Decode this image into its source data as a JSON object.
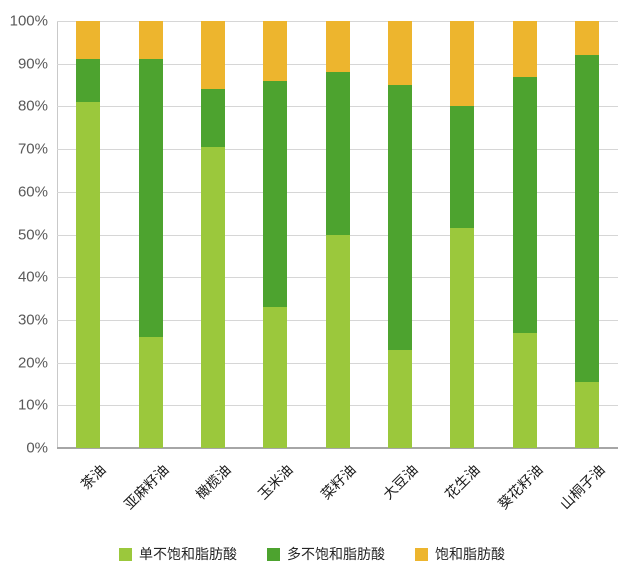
{
  "chart_data": {
    "type": "bar",
    "stacked": true,
    "percent": true,
    "title": "",
    "xlabel": "",
    "ylabel": "",
    "ylim": [
      0,
      100
    ],
    "ytick_step": 10,
    "yticks": [
      "0%",
      "10%",
      "20%",
      "30%",
      "40%",
      "50%",
      "60%",
      "70%",
      "80%",
      "90%",
      "100%"
    ],
    "grid": true,
    "legend_position": "bottom",
    "categories": [
      "茶油",
      "亚麻籽油",
      "橄榄油",
      "玉米油",
      "菜籽油",
      "大豆油",
      "花生油",
      "葵花籽油",
      "山桐子油"
    ],
    "series": [
      {
        "name": "单不饱和脂肪酸",
        "color": "#9BC83C",
        "values": [
          81,
          26,
          70.5,
          33,
          50,
          23,
          51.5,
          27,
          15.5
        ]
      },
      {
        "name": "多不饱和脂肪酸",
        "color": "#4DA32F",
        "values": [
          10,
          65,
          13.5,
          53,
          38,
          62,
          28.5,
          60,
          76.5
        ]
      },
      {
        "name": "饱和脂肪酸",
        "color": "#EDB52E",
        "values": [
          9,
          9,
          16,
          14,
          12,
          15,
          20,
          13,
          8
        ]
      }
    ]
  },
  "colors": {
    "background": "#ffffff",
    "gridline": "#d6d6d6",
    "axis_line": "#a6a6a6",
    "y_tick_text": "#595959",
    "x_tick_text": "#1a1a1a",
    "legend_text": "#262626"
  }
}
